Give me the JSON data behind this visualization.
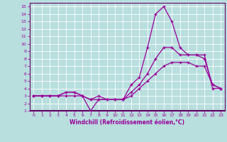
{
  "xlabel": "Windchill (Refroidissement éolien,°C)",
  "bg_color": "#b8dede",
  "grid_color": "#ffffff",
  "line_color": "#990099",
  "x_values": [
    0,
    1,
    2,
    3,
    4,
    5,
    6,
    7,
    8,
    9,
    10,
    11,
    12,
    13,
    14,
    15,
    16,
    17,
    18,
    19,
    20,
    21,
    22,
    23
  ],
  "line1_y": [
    3,
    3,
    3,
    3,
    3.5,
    3.5,
    3,
    1.0,
    2.5,
    2.5,
    2.5,
    2.5,
    4.5,
    5.5,
    9.5,
    14,
    15,
    13,
    9.5,
    8.5,
    8.5,
    8.5,
    4,
    4
  ],
  "line2_y": [
    3,
    3,
    3,
    3,
    3.5,
    3.5,
    3,
    2.5,
    3.0,
    2.5,
    2.5,
    2.5,
    3.5,
    4.5,
    6.0,
    8.0,
    9.5,
    9.5,
    8.5,
    8.5,
    8.5,
    8.0,
    4.5,
    4
  ],
  "line3_y": [
    3,
    3,
    3,
    3,
    3.0,
    3.0,
    3,
    2.5,
    2.5,
    2.5,
    2.5,
    2.5,
    3.0,
    4.0,
    5.0,
    6.0,
    7.0,
    7.5,
    7.5,
    7.5,
    7.0,
    7.0,
    4.5,
    4
  ],
  "ylim": [
    1,
    15.5
  ],
  "xlim": [
    -0.5,
    23.5
  ],
  "yticks": [
    1,
    2,
    3,
    4,
    5,
    6,
    7,
    8,
    9,
    10,
    11,
    12,
    13,
    14,
    15
  ],
  "xticks": [
    0,
    1,
    2,
    3,
    4,
    5,
    6,
    7,
    8,
    9,
    10,
    11,
    12,
    13,
    14,
    15,
    16,
    17,
    18,
    19,
    20,
    21,
    22,
    23
  ]
}
